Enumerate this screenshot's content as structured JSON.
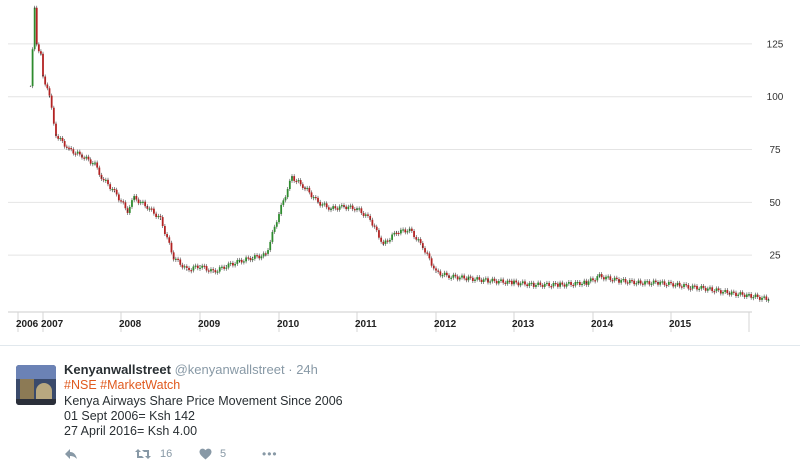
{
  "chart_data": {
    "type": "line",
    "title": "",
    "xlabel": "",
    "ylabel": "",
    "x_tick_labels": [
      "2006",
      "2007",
      "2008",
      "2009",
      "2010",
      "2011",
      "2012",
      "2013",
      "2014",
      "2015"
    ],
    "y_tick_labels": [
      "25",
      "50",
      "75",
      "100",
      "125"
    ],
    "y_ticks": [
      25,
      50,
      75,
      100,
      125
    ],
    "ylim": [
      0,
      142
    ],
    "grid": true,
    "series": [
      {
        "x": [
          "2006-07",
          "2006-09",
          "2006-10",
          "2006-12",
          "2007-01",
          "2007-02",
          "2007-03",
          "2007-05",
          "2007-07",
          "2007-09",
          "2007-10",
          "2007-12",
          "2008-02",
          "2008-03",
          "2008-05",
          "2008-07",
          "2008-09",
          "2008-11",
          "2009-01",
          "2009-03",
          "2009-05",
          "2009-07",
          "2009-09",
          "2009-11",
          "2010-01",
          "2010-03",
          "2010-05",
          "2010-07",
          "2010-09",
          "2010-11",
          "2011-01",
          "2011-03",
          "2011-05",
          "2011-07",
          "2011-09",
          "2011-11",
          "2012-01",
          "2012-03",
          "2012-06",
          "2012-09",
          "2013-01",
          "2013-04",
          "2013-08",
          "2013-12",
          "2014-02",
          "2014-05",
          "2014-08",
          "2014-11",
          "2015-02",
          "2015-04",
          "2015-07",
          "2015-10",
          "2016-01",
          "2016-04"
        ],
        "y": [
          105,
          142,
          125,
          120,
          110,
          100,
          82,
          75,
          72,
          68,
          62,
          55,
          46,
          52,
          48,
          42,
          24,
          18,
          20,
          17,
          20,
          22,
          24,
          25,
          45,
          62,
          57,
          50,
          47,
          48,
          47,
          42,
          30,
          36,
          37,
          29,
          17,
          15,
          14,
          13,
          12,
          11,
          11,
          12,
          15,
          13,
          12,
          12,
          11,
          10,
          9,
          7,
          6,
          4
        ]
      }
    ]
  },
  "tweet": {
    "name": "Kenyanwallstreet",
    "handle": "@kenyanwallstreet",
    "separator": "·",
    "time": "24h",
    "hashtags": "#NSE #MarketWatch",
    "text_line_1": "Kenya Airways Share Price Movement Since 2006",
    "text_line_2": "01 Sept 2006= Ksh 142",
    "text_line_3": "27 April 2016= Ksh 4.00",
    "retweet_count": "16",
    "like_count": "5",
    "more_label": "•••",
    "icons": [
      "reply-icon",
      "retweet-icon",
      "heart-icon",
      "more-icon"
    ],
    "colors": {
      "hashtag": "#e05a1f",
      "muted": "#8899a6",
      "up": "#2e8b2e",
      "down": "#b22222"
    }
  }
}
